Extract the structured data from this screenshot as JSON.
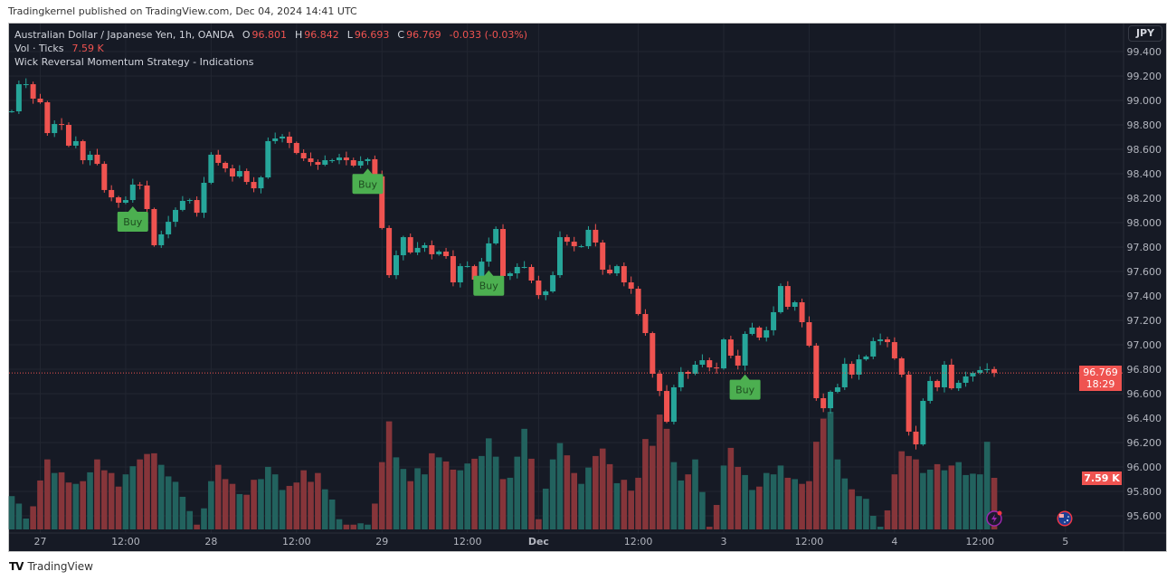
{
  "published": "Tradingkernel published on TradingView.com, Dec 04, 2024 14:41 UTC",
  "legend": {
    "symbol": "Australian Dollar / Japanese Yen, 1h, OANDA",
    "o_label": "O",
    "o": "96.801",
    "h_label": "H",
    "h": "96.842",
    "l_label": "L",
    "l": "96.693",
    "c_label": "C",
    "c": "96.769",
    "change": "-0.033 (-0.03%)",
    "vol_label": "Vol · Ticks",
    "vol_value": "7.59 K",
    "indicator": "Wick Reversal Momentum Strategy - Indications"
  },
  "currency_button": "JPY",
  "last_price": {
    "price": "96.769",
    "countdown": "18:29"
  },
  "last_volume": "7.59 K",
  "brand": "TradingView",
  "colors": {
    "up": "#26a69a",
    "down": "#ef5350",
    "vol_up": "#22625e",
    "vol_down": "#86353a",
    "buy": "#4caf50",
    "background": "#161a25",
    "grid": "#222631"
  },
  "icons": [
    "lightning-icon",
    "australia-flag-icon"
  ],
  "chart_data": {
    "type": "candlestick",
    "symbol": "AUDJPY",
    "interval": "1h",
    "ylim": [
      95.5,
      99.45
    ],
    "grid": true,
    "price_ticks": [
      "99.400",
      "99.200",
      "99.000",
      "98.800",
      "98.600",
      "98.400",
      "98.200",
      "98.000",
      "97.800",
      "97.600",
      "97.400",
      "97.200",
      "97.000",
      "96.800",
      "96.600",
      "96.400",
      "96.200",
      "96.000",
      "95.800",
      "95.600"
    ],
    "time_ticks": [
      {
        "label": "27",
        "bar": 4
      },
      {
        "label": "12:00",
        "bar": 16
      },
      {
        "label": "28",
        "bar": 28
      },
      {
        "label": "12:00",
        "bar": 40
      },
      {
        "label": "29",
        "bar": 52
      },
      {
        "label": "12:00",
        "bar": 64
      },
      {
        "label": "Dec",
        "bar": 74
      },
      {
        "label": "12:00",
        "bar": 88
      },
      {
        "label": "3",
        "bar": 100
      },
      {
        "label": "12:00",
        "bar": 112
      },
      {
        "label": "4",
        "bar": 124
      },
      {
        "label": "12:00",
        "bar": 136
      },
      {
        "label": "5",
        "bar": 148
      }
    ],
    "first_open": 98.911,
    "close": [
      98.911,
      99.133,
      99.133,
      99.015,
      98.985,
      98.733,
      98.807,
      98.8,
      98.63,
      98.667,
      98.511,
      98.556,
      98.481,
      98.267,
      98.207,
      98.163,
      98.185,
      98.311,
      98.304,
      98.111,
      97.815,
      97.904,
      98.007,
      98.104,
      98.178,
      98.185,
      98.081,
      98.326,
      98.556,
      98.489,
      98.444,
      98.378,
      98.422,
      98.333,
      98.281,
      98.37,
      98.667,
      98.689,
      98.704,
      98.652,
      98.57,
      98.526,
      98.496,
      98.474,
      98.511,
      98.511,
      98.533,
      98.511,
      98.467,
      98.504,
      98.519,
      98.378,
      97.956,
      97.57,
      97.733,
      97.881,
      97.756,
      97.793,
      97.815,
      97.741,
      97.763,
      97.726,
      97.511,
      97.644,
      97.644,
      97.533,
      97.681,
      97.83,
      97.948,
      97.563,
      97.585,
      97.637,
      97.637,
      97.526,
      97.407,
      97.437,
      97.57,
      97.881,
      97.844,
      97.807,
      97.807,
      97.941,
      97.837,
      97.615,
      97.585,
      97.644,
      97.511,
      97.459,
      97.252,
      97.096,
      96.763,
      96.622,
      96.37,
      96.652,
      96.778,
      96.763,
      96.837,
      96.874,
      96.815,
      96.807,
      97.044,
      96.911,
      96.83,
      97.089,
      97.141,
      97.059,
      97.119,
      97.267,
      97.481,
      97.311,
      97.348,
      97.185,
      96.993,
      96.563,
      96.481,
      96.615,
      96.652,
      96.844,
      96.756,
      96.881,
      96.904,
      97.03,
      97.044,
      97.022,
      96.889,
      96.756,
      96.289,
      96.185,
      96.541,
      96.704,
      96.652,
      96.837,
      96.644,
      96.689,
      96.741,
      96.77,
      96.793,
      96.801,
      96.769
    ],
    "volume_k": [
      4.9,
      3.8,
      1.6,
      3.4,
      7.2,
      10.3,
      8.3,
      8.4,
      6.9,
      6.7,
      7.1,
      8.4,
      10.3,
      8.7,
      8.3,
      6.3,
      8.1,
      9.3,
      10.3,
      11.1,
      11.2,
      9.5,
      7.8,
      7.0,
      4.8,
      2.7,
      0.7,
      3.1,
      7.1,
      9.5,
      7.4,
      6.7,
      5.2,
      5.1,
      7.3,
      7.4,
      9.2,
      8.1,
      5.8,
      6.4,
      6.9,
      8.7,
      7.0,
      8.3,
      5.9,
      4.4,
      1.5,
      0.7,
      0.7,
      0.9,
      0.7,
      3.8,
      9.9,
      15.9,
      10.6,
      8.9,
      7.1,
      9.0,
      8.1,
      11.2,
      10.6,
      10.0,
      8.8,
      8.7,
      9.7,
      10.4,
      10.8,
      13.4,
      10.7,
      7.4,
      7.6,
      10.7,
      14.8,
      10.4,
      1.5,
      6.0,
      10.3,
      12.7,
      10.9,
      8.3,
      6.7,
      9.1,
      10.8,
      11.9,
      9.6,
      6.8,
      7.3,
      5.7,
      7.6,
      13.3,
      12.3,
      16.9,
      14.8,
      9.9,
      7.2,
      8.1,
      10.3,
      5.5,
      0.4,
      3.6,
      9.4,
      12.0,
      9.2,
      8.0,
      5.8,
      6.3,
      8.3,
      8.1,
      9.4,
      7.6,
      7.4,
      6.7,
      7.1,
      12.9,
      16.3,
      17.3,
      10.3,
      7.5,
      5.9,
      4.9,
      4.5,
      2.0,
      0.4,
      2.8,
      8.1,
      11.5,
      10.8,
      10.3,
      8.3,
      8.8,
      9.6,
      8.7,
      9.4,
      9.9,
      8.0,
      8.2,
      8.1,
      12.9,
      7.59
    ],
    "signals": [
      {
        "bar": 17,
        "label": "Buy"
      },
      {
        "bar": 50,
        "label": "Buy"
      },
      {
        "bar": 67,
        "label": "Buy"
      },
      {
        "bar": 103,
        "label": "Buy"
      }
    ]
  }
}
